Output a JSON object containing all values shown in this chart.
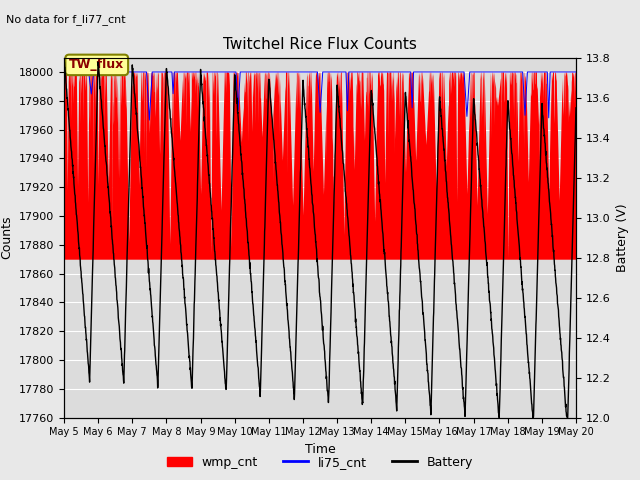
{
  "title": "Twitchel Rice Flux Counts",
  "no_data_text": "No data for f_li77_cnt",
  "xlabel": "Time",
  "ylabel_left": "Counts",
  "ylabel_right": "Battery (V)",
  "ylim_left": [
    17760,
    18010
  ],
  "ylim_right": [
    12.0,
    13.8
  ],
  "yticks_left": [
    17760,
    17780,
    17800,
    17820,
    17840,
    17860,
    17880,
    17900,
    17920,
    17940,
    17960,
    17980,
    18000
  ],
  "yticks_right": [
    12.0,
    12.2,
    12.4,
    12.6,
    12.8,
    13.0,
    13.2,
    13.4,
    13.6,
    13.8
  ],
  "x_tick_labels": [
    "May 5",
    "May 6",
    "May 7",
    "May 8",
    "May 9",
    "May 10",
    "May 11",
    "May 12",
    "May 13",
    "May 14",
    "May 15",
    "May 16",
    "May 17",
    "May 18",
    "May 19",
    "May 20"
  ],
  "wmp_color": "#FF0000",
  "li75_color": "#0000FF",
  "battery_color": "#000000",
  "bg_color": "#E8E8E8",
  "plot_bg_color": "#DCDCDC",
  "legend_box_color": "#FFFF99",
  "legend_box_text": "TW_flux",
  "num_days": 15
}
